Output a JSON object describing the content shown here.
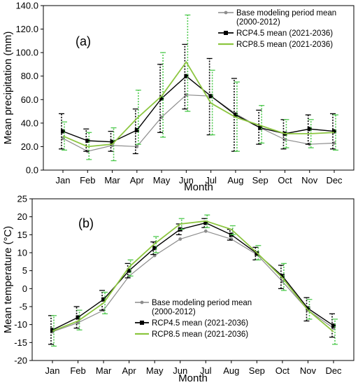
{
  "colors": {
    "base": "#8c8c8c",
    "rcp45": "#000000",
    "rcp85": "#8cc63f",
    "rcp85_err": "#4ec94e"
  },
  "chart_data": [
    {
      "type": "line",
      "panel_label": "(a)",
      "xlabel": "Month",
      "ylabel": "Mean precipitation (mm)",
      "categories": [
        "Jan",
        "Feb",
        "Mar",
        "Apr",
        "May",
        "Jun",
        "Jul",
        "Aug",
        "Sep",
        "Oct",
        "Nov",
        "Dec"
      ],
      "ylim": [
        0,
        140
      ],
      "yticks": [
        0,
        20,
        40,
        60,
        80,
        100,
        120,
        140
      ],
      "ytick_labels": [
        "0.0",
        "20.0",
        "40.0",
        "60.0",
        "80.0",
        "100.0",
        "120.0",
        "140.0"
      ],
      "legend_position": "top-right",
      "series": [
        {
          "name": "Base modeling period mean (2000-2012)",
          "legend_lines": [
            "Base modeling period mean",
            "(2000-2012)"
          ],
          "values": [
            27,
            16,
            21,
            20,
            45,
            64,
            63,
            48,
            36,
            26,
            22,
            23
          ],
          "error_low": null,
          "error_high": null
        },
        {
          "name": "RCP4.5 mean (2021-2036)",
          "legend_lines": [
            "RCP4.5 mean (2021-2036)"
          ],
          "values": [
            33,
            25,
            24,
            34,
            61,
            80,
            63,
            47,
            36,
            31,
            35,
            33
          ],
          "error_low": [
            18,
            16,
            16,
            14,
            32,
            52,
            30,
            16,
            22,
            18,
            22,
            18
          ],
          "error_high": [
            48,
            35,
            33,
            52,
            90,
            107,
            95,
            78,
            51,
            43,
            47,
            48
          ]
        },
        {
          "name": "RCP8.5 mean (2021-2036)",
          "legend_lines": [
            "RCP8.5 mean (2021-2036)"
          ],
          "values": [
            29,
            20,
            22,
            44,
            63,
            92,
            57,
            45,
            38,
            31,
            31,
            32
          ],
          "error_low": [
            17,
            9,
            8,
            22,
            28,
            50,
            30,
            16,
            23,
            19,
            19,
            17
          ],
          "error_high": [
            41,
            32,
            36,
            68,
            100,
            132,
            85,
            75,
            55,
            43,
            43,
            47
          ]
        }
      ]
    },
    {
      "type": "line",
      "panel_label": "(b)",
      "xlabel": "Month",
      "ylabel": "Mean temperature (°C)",
      "categories": [
        "Jan",
        "Feb",
        "Mar",
        "Apr",
        "May",
        "Jun",
        "Jul",
        "Aug",
        "Sep",
        "Oct",
        "Nov",
        "Dec"
      ],
      "ylim": [
        -20,
        25
      ],
      "yticks": [
        -20,
        -15,
        -10,
        -5,
        0,
        5,
        10,
        15,
        20,
        25
      ],
      "ytick_labels": [
        "-20",
        "-15",
        "-10",
        "-5",
        "0",
        "5",
        "10",
        "15",
        "20",
        "25"
      ],
      "legend_position": "bottom-center",
      "series": [
        {
          "name": "Base modeling period mean (2000-2012)",
          "legend_lines": [
            "Base modeling period mean",
            "(2000-2012)"
          ],
          "values": [
            -12,
            -9.5,
            -6,
            3.5,
            9.2,
            13.8,
            16,
            13.8,
            9.5,
            2,
            -6,
            -11
          ],
          "error_low": null,
          "error_high": null
        },
        {
          "name": "RCP4.5 mean (2021-2036)",
          "legend_lines": [
            "RCP4.5 mean (2021-2036)"
          ],
          "values": [
            -11.5,
            -8,
            -3,
            5,
            11.3,
            16.5,
            18.3,
            15,
            9.8,
            3.5,
            -5.5,
            -10.3
          ],
          "error_low": [
            -15.5,
            -11,
            -6,
            3,
            9.5,
            15,
            17,
            13.5,
            8,
            0,
            -9,
            -13.5
          ],
          "error_high": [
            -7.5,
            -5,
            -0.5,
            7,
            13,
            18,
            19.5,
            16.5,
            11.5,
            6.5,
            -2.5,
            -7
          ]
        },
        {
          "name": "RCP8.5 mean (2021-2036)",
          "legend_lines": [
            "RCP8.5 mean (2021-2036)"
          ],
          "values": [
            -11.8,
            -9,
            -4,
            6,
            12.5,
            18,
            18.8,
            16.5,
            10,
            3,
            -6,
            -12
          ],
          "error_low": [
            -16,
            -11.5,
            -7,
            3.5,
            10,
            16.5,
            17,
            15,
            8,
            -0.5,
            -8.5,
            -15.5
          ],
          "error_high": [
            -7.5,
            -6,
            -1,
            8,
            14.5,
            19.5,
            20.5,
            17.5,
            12,
            7,
            -3,
            -8.5
          ]
        }
      ]
    }
  ]
}
